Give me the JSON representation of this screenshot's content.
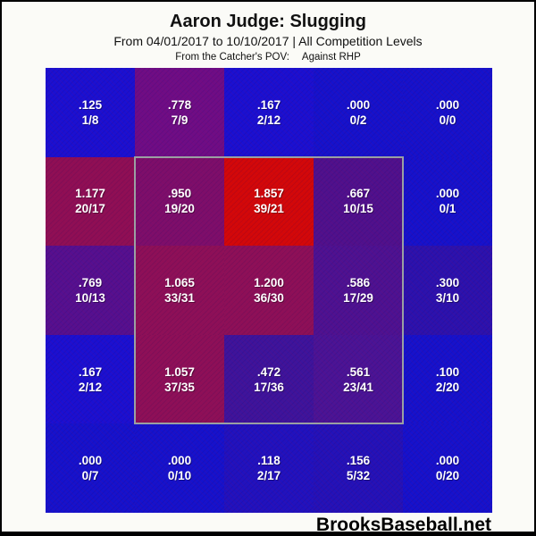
{
  "chart_data": {
    "type": "heatmap",
    "title": "Aaron Judge: Slugging",
    "subtitle": "From 04/01/2017 to 10/10/2017 | All Competition Levels",
    "pov_label": "From the Catcher's POV:",
    "split_label": "Against RHP",
    "rows": 5,
    "cols": 5,
    "legend": "each cell shows slugging value over (total bases / at-bats)",
    "strike_zone": {
      "col_start": 2,
      "row_start": 2,
      "col_end": 4,
      "row_end": 4,
      "border_color": "#9aa0a2"
    },
    "cells": [
      {
        "row": 1,
        "col": 1,
        "value": ".125",
        "ratio": "1/8",
        "color": "#1a10d2"
      },
      {
        "row": 1,
        "col": 2,
        "value": ".778",
        "ratio": "7/9",
        "color": "#6e0d86"
      },
      {
        "row": 1,
        "col": 3,
        "value": ".167",
        "ratio": "2/12",
        "color": "#1a10d2"
      },
      {
        "row": 1,
        "col": 4,
        "value": ".000",
        "ratio": "0/2",
        "color": "#1512cd"
      },
      {
        "row": 1,
        "col": 5,
        "value": ".000",
        "ratio": "0/0",
        "color": "#1512cd"
      },
      {
        "row": 2,
        "col": 1,
        "value": "1.177",
        "ratio": "20/17",
        "color": "#8f0f55"
      },
      {
        "row": 2,
        "col": 2,
        "value": ".950",
        "ratio": "19/20",
        "color": "#7d0e6b"
      },
      {
        "row": 2,
        "col": 3,
        "value": "1.857",
        "ratio": "39/21",
        "color": "#d40808"
      },
      {
        "row": 2,
        "col": 4,
        "value": ".667",
        "ratio": "10/15",
        "color": "#4f118d"
      },
      {
        "row": 2,
        "col": 5,
        "value": ".000",
        "ratio": "0/1",
        "color": "#1512cd"
      },
      {
        "row": 3,
        "col": 1,
        "value": ".769",
        "ratio": "10/13",
        "color": "#551090"
      },
      {
        "row": 3,
        "col": 2,
        "value": "1.065",
        "ratio": "33/31",
        "color": "#8d1058"
      },
      {
        "row": 3,
        "col": 3,
        "value": "1.200",
        "ratio": "36/30",
        "color": "#8d1058"
      },
      {
        "row": 3,
        "col": 4,
        "value": ".586",
        "ratio": "17/29",
        "color": "#4d1292"
      },
      {
        "row": 3,
        "col": 5,
        "value": ".300",
        "ratio": "3/10",
        "color": "#2b12ae"
      },
      {
        "row": 4,
        "col": 1,
        "value": ".167",
        "ratio": "2/12",
        "color": "#1a10d2"
      },
      {
        "row": 4,
        "col": 2,
        "value": "1.057",
        "ratio": "37/35",
        "color": "#8d1058"
      },
      {
        "row": 4,
        "col": 3,
        "value": ".472",
        "ratio": "17/36",
        "color": "#3d149c"
      },
      {
        "row": 4,
        "col": 4,
        "value": ".561",
        "ratio": "23/41",
        "color": "#4a1496"
      },
      {
        "row": 4,
        "col": 5,
        "value": ".100",
        "ratio": "2/20",
        "color": "#1512cd"
      },
      {
        "row": 5,
        "col": 1,
        "value": ".000",
        "ratio": "0/7",
        "color": "#1512cd"
      },
      {
        "row": 5,
        "col": 2,
        "value": ".000",
        "ratio": "0/10",
        "color": "#1512cd"
      },
      {
        "row": 5,
        "col": 3,
        "value": ".118",
        "ratio": "2/17",
        "color": "#2012bf"
      },
      {
        "row": 5,
        "col": 4,
        "value": ".156",
        "ratio": "5/32",
        "color": "#2312b9"
      },
      {
        "row": 5,
        "col": 5,
        "value": ".000",
        "ratio": "0/20",
        "color": "#1512cd"
      }
    ],
    "footer": "BrooksBaseball.net"
  }
}
